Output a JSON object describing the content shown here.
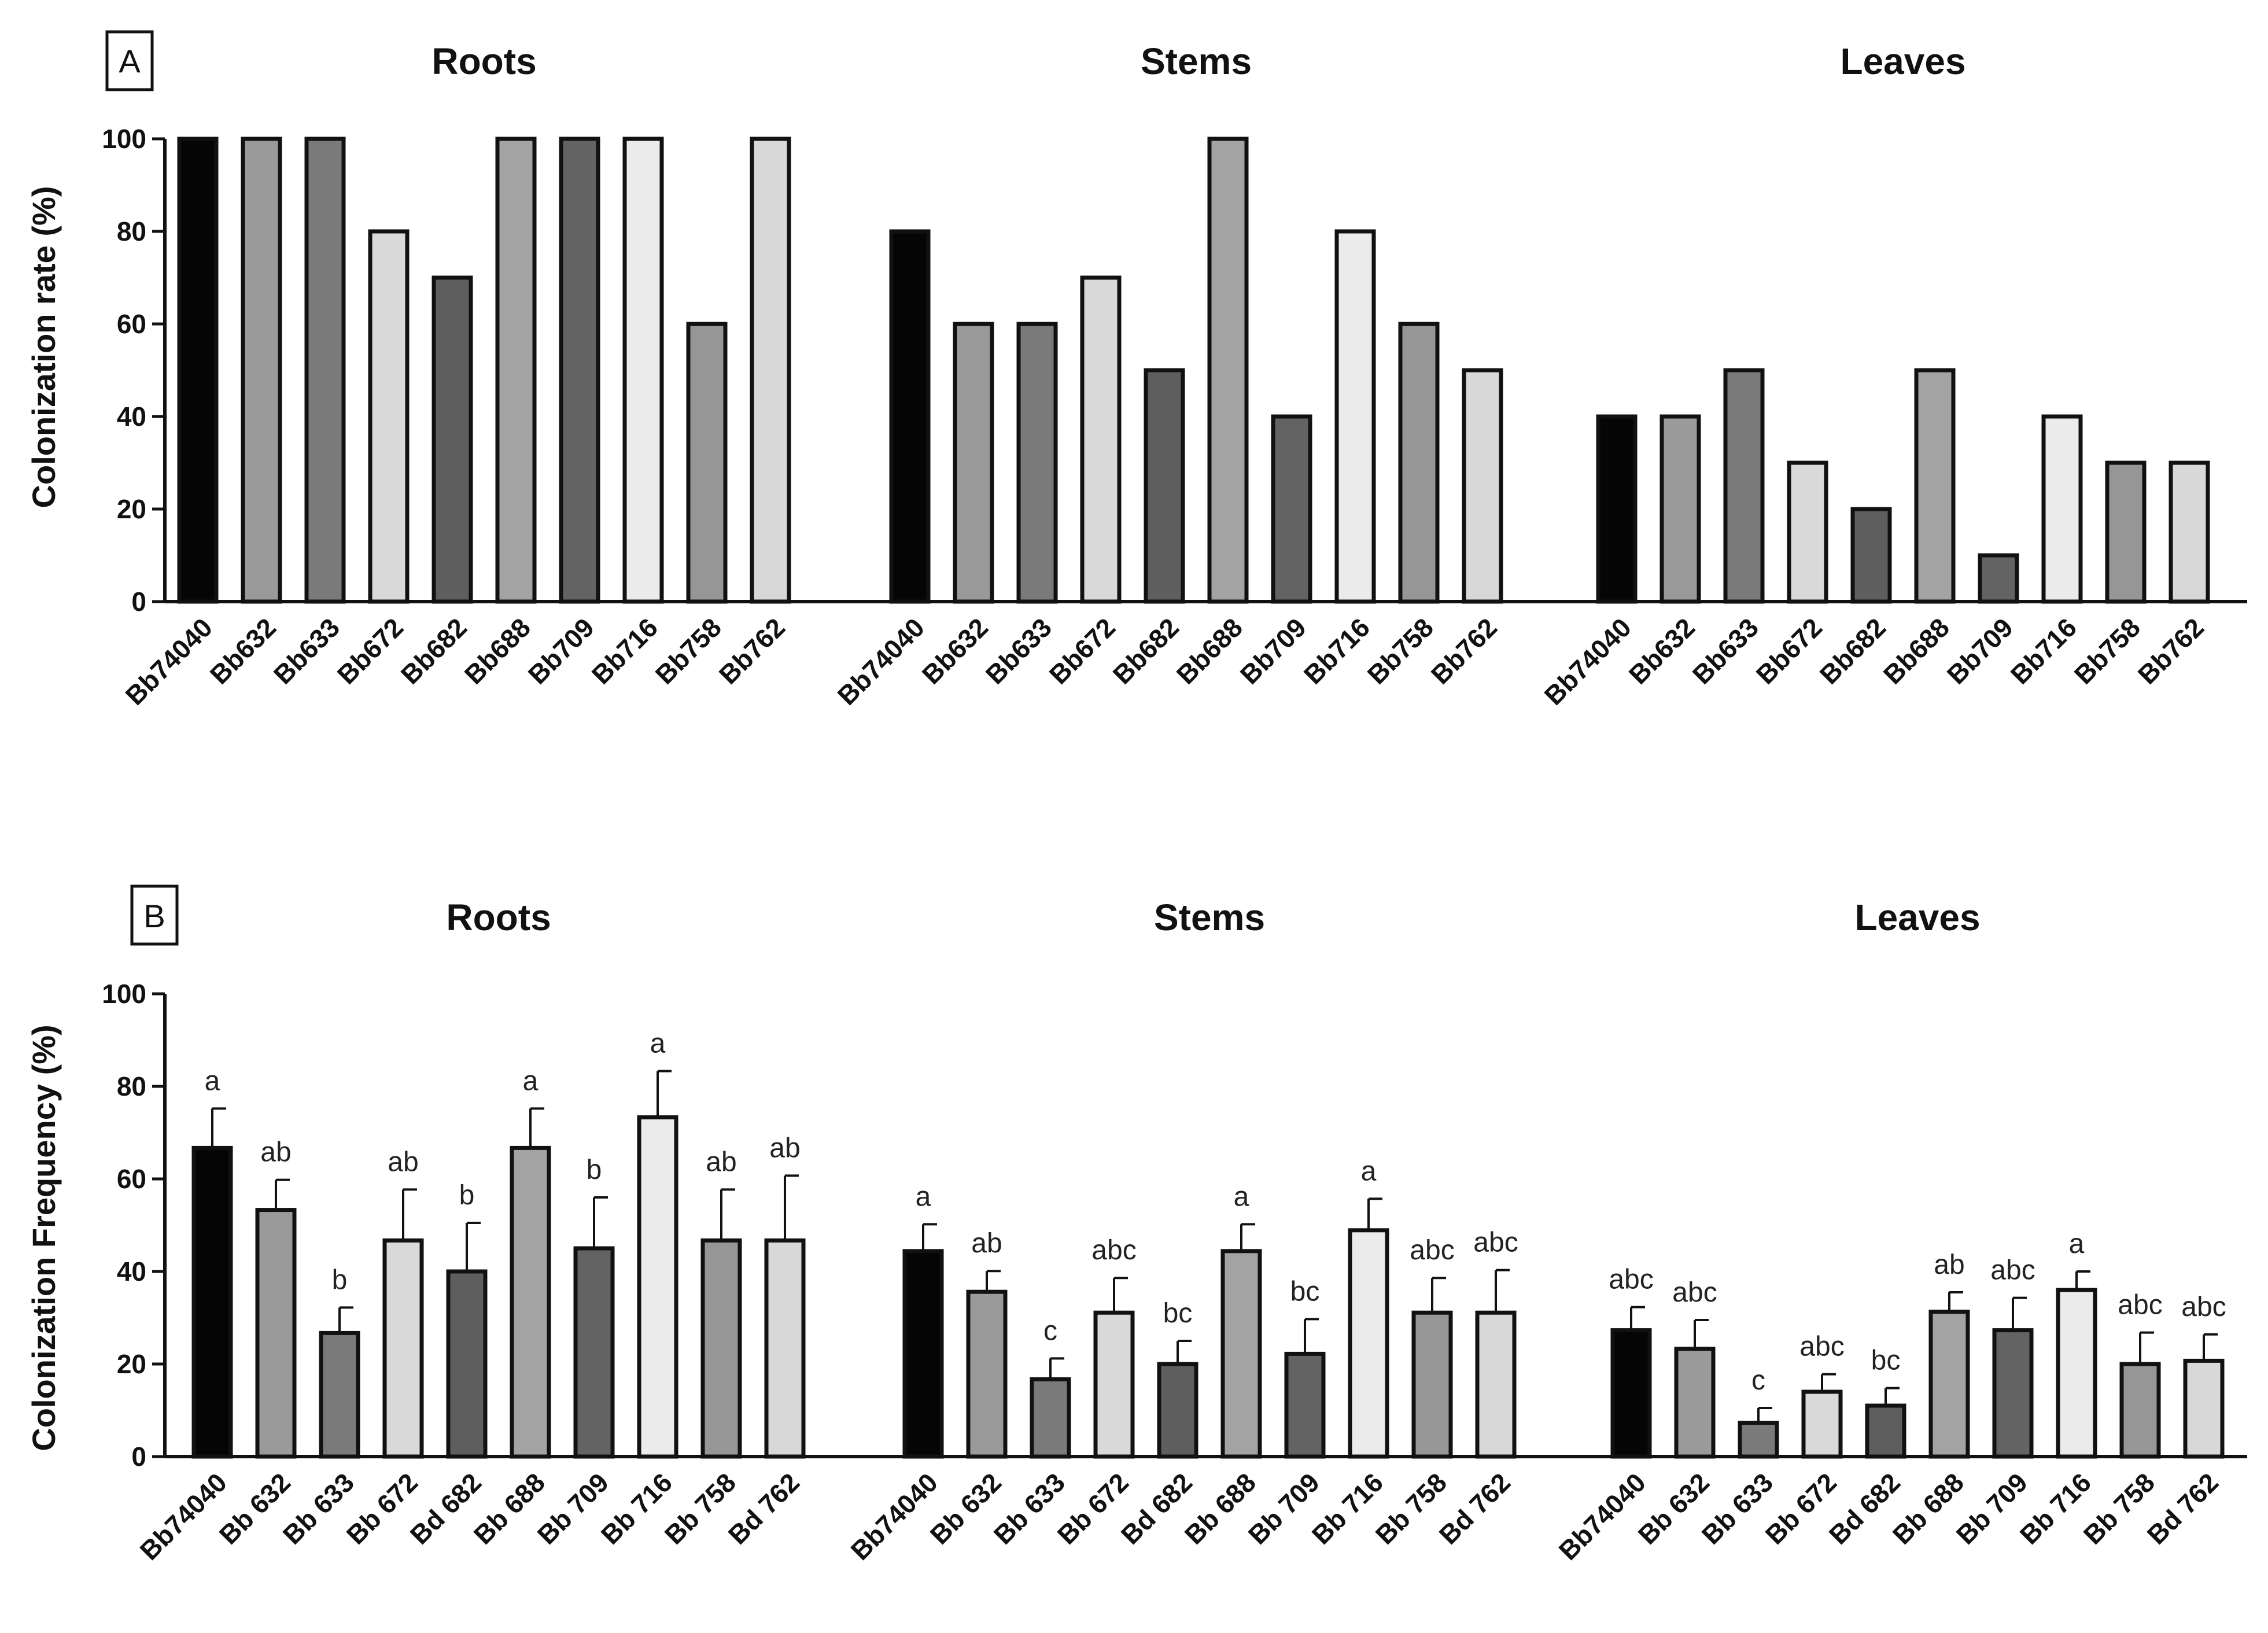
{
  "figure": {
    "background": "#ffffff"
  },
  "chart_data": [
    {
      "type": "bar",
      "panel_label": "A",
      "ylabel": "Colonization rate (%)",
      "ylim": [
        0,
        100
      ],
      "yticks": [
        0,
        20,
        40,
        60,
        80,
        100
      ],
      "strains": [
        "Bb74040",
        "Bb632",
        "Bb633",
        "Bb672",
        "Bb682",
        "Bb688",
        "Bb709",
        "Bb716",
        "Bb758",
        "Bb762"
      ],
      "bar_colors": [
        "#050505",
        "#9a9a9a",
        "#7a7a7a",
        "#d9d9d9",
        "#5e5e5e",
        "#a3a3a3",
        "#636363",
        "#ebebeb",
        "#969696",
        "#d8d8d8"
      ],
      "groups": [
        {
          "title": "Roots",
          "values": [
            100,
            100,
            100,
            80,
            70,
            100,
            100,
            100,
            60,
            100
          ]
        },
        {
          "title": "Stems",
          "values": [
            80,
            60,
            60,
            70,
            50,
            100,
            40,
            80,
            60,
            50
          ]
        },
        {
          "title": "Leaves",
          "values": [
            40,
            40,
            50,
            30,
            20,
            50,
            10,
            40,
            30,
            30
          ]
        }
      ]
    },
    {
      "type": "bar",
      "panel_label": "B",
      "ylabel": "Colonization Frequency (%)",
      "ylim": [
        0,
        100
      ],
      "yticks": [
        0,
        20,
        40,
        60,
        80,
        100
      ],
      "strains": [
        "Bb74040",
        "Bb 632",
        "Bb 633",
        "Bb 672",
        "Bd 682",
        "Bb 688",
        "Bb 709",
        "Bb 716",
        "Bb 758",
        "Bd 762"
      ],
      "bar_colors": [
        "#050505",
        "#9a9a9a",
        "#7a7a7a",
        "#d9d9d9",
        "#5e5e5e",
        "#a3a3a3",
        "#636363",
        "#ebebeb",
        "#969696",
        "#d8d8d8"
      ],
      "groups": [
        {
          "title": "Roots",
          "values": [
            66.7,
            53.3,
            26.7,
            46.7,
            40.0,
            66.7,
            45.0,
            73.3,
            46.7,
            46.7
          ],
          "errors": [
            8.5,
            6.5,
            5.5,
            11.0,
            10.5,
            8.5,
            11.0,
            10.0,
            11.0,
            14.0
          ],
          "letters": [
            "a",
            "ab",
            "b",
            "ab",
            "b",
            "a",
            "b",
            "a",
            "ab",
            "ab"
          ]
        },
        {
          "title": "Stems",
          "values": [
            44.4,
            35.6,
            16.7,
            31.1,
            20.0,
            44.4,
            22.2,
            48.9,
            31.1,
            31.1
          ],
          "errors": [
            5.8,
            4.5,
            4.5,
            7.5,
            5.0,
            5.8,
            7.5,
            6.8,
            7.5,
            9.2
          ],
          "letters": [
            "a",
            "ab",
            "c",
            "abc",
            "bc",
            "a",
            "bc",
            "a",
            "abc",
            "abc"
          ]
        },
        {
          "title": "Leaves",
          "values": [
            27.3,
            23.3,
            7.3,
            14.0,
            11.0,
            31.3,
            27.3,
            36.0,
            20.0,
            20.7
          ],
          "errors": [
            5.0,
            6.2,
            3.2,
            3.8,
            3.8,
            4.2,
            7.0,
            4.0,
            6.8,
            5.7
          ],
          "letters": [
            "abc",
            "abc",
            "c",
            "abc",
            "bc",
            "ab",
            "abc",
            "a",
            "abc",
            "abc"
          ]
        }
      ]
    }
  ]
}
